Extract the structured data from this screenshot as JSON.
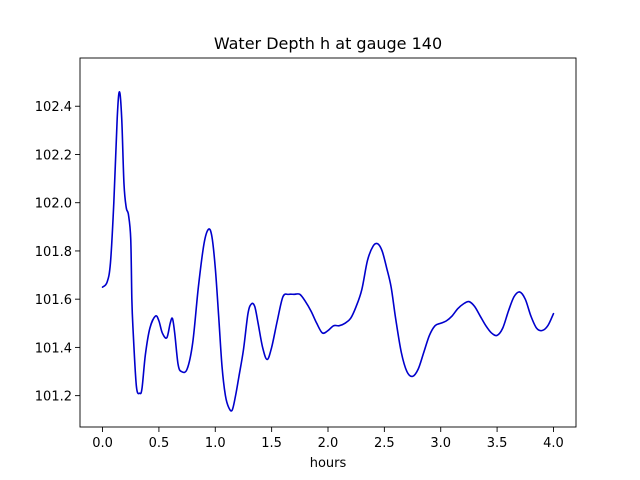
{
  "chart_data": {
    "type": "line",
    "title": "Water Depth h at gauge 140",
    "xlabel": "hours",
    "ylabel": "",
    "xlim": [
      -0.2,
      4.2
    ],
    "ylim": [
      101.07,
      102.6
    ],
    "xticks": [
      0.0,
      0.5,
      1.0,
      1.5,
      2.0,
      2.5,
      3.0,
      3.5,
      4.0
    ],
    "xtick_labels": [
      "0.0",
      "0.5",
      "1.0",
      "1.5",
      "2.0",
      "2.5",
      "3.0",
      "3.5",
      "4.0"
    ],
    "yticks": [
      101.2,
      101.4,
      101.6,
      101.8,
      102.0,
      102.2,
      102.4
    ],
    "ytick_labels": [
      "101.2",
      "101.4",
      "101.6",
      "101.8",
      "102.0",
      "102.2",
      "102.4"
    ],
    "grid": false,
    "series": [
      {
        "color": "#0000cc",
        "x": [
          0.0,
          0.04,
          0.07,
          0.1,
          0.13,
          0.15,
          0.17,
          0.19,
          0.21,
          0.23,
          0.25,
          0.26,
          0.27,
          0.3,
          0.33,
          0.35,
          0.38,
          0.42,
          0.47,
          0.5,
          0.53,
          0.57,
          0.6,
          0.62,
          0.64,
          0.67,
          0.7,
          0.75,
          0.8,
          0.85,
          0.9,
          0.94,
          0.97,
          1.0,
          1.03,
          1.06,
          1.09,
          1.12,
          1.15,
          1.18,
          1.21,
          1.25,
          1.29,
          1.32,
          1.35,
          1.38,
          1.42,
          1.46,
          1.5,
          1.55,
          1.6,
          1.65,
          1.7,
          1.75,
          1.8,
          1.85,
          1.9,
          1.95,
          2.0,
          2.05,
          2.1,
          2.15,
          2.2,
          2.25,
          2.3,
          2.35,
          2.4,
          2.44,
          2.48,
          2.52,
          2.56,
          2.6,
          2.65,
          2.7,
          2.75,
          2.8,
          2.85,
          2.9,
          2.95,
          3.0,
          3.05,
          3.1,
          3.15,
          3.2,
          3.25,
          3.3,
          3.35,
          3.4,
          3.45,
          3.5,
          3.55,
          3.6,
          3.65,
          3.7,
          3.75,
          3.8,
          3.85,
          3.9,
          3.95,
          4.0
        ],
        "y": [
          101.65,
          101.67,
          101.75,
          102.0,
          102.35,
          102.46,
          102.35,
          102.08,
          101.98,
          101.95,
          101.85,
          101.6,
          101.48,
          101.24,
          101.21,
          101.23,
          101.37,
          101.48,
          101.53,
          101.51,
          101.46,
          101.44,
          101.5,
          101.52,
          101.46,
          101.33,
          101.3,
          101.31,
          101.42,
          101.65,
          101.83,
          101.89,
          101.86,
          101.73,
          101.53,
          101.32,
          101.2,
          101.15,
          101.14,
          101.2,
          101.28,
          101.39,
          101.54,
          101.58,
          101.57,
          101.5,
          101.4,
          101.35,
          101.4,
          101.51,
          101.61,
          101.62,
          101.62,
          101.62,
          101.59,
          101.55,
          101.5,
          101.46,
          101.47,
          101.49,
          101.49,
          101.5,
          101.52,
          101.57,
          101.64,
          101.76,
          101.82,
          101.83,
          101.8,
          101.73,
          101.65,
          101.52,
          101.38,
          101.3,
          101.28,
          101.31,
          101.38,
          101.45,
          101.49,
          101.5,
          101.51,
          101.53,
          101.56,
          101.58,
          101.59,
          101.57,
          101.53,
          101.49,
          101.46,
          101.45,
          101.48,
          101.55,
          101.61,
          101.63,
          101.6,
          101.53,
          101.48,
          101.47,
          101.49,
          101.54
        ]
      }
    ]
  }
}
